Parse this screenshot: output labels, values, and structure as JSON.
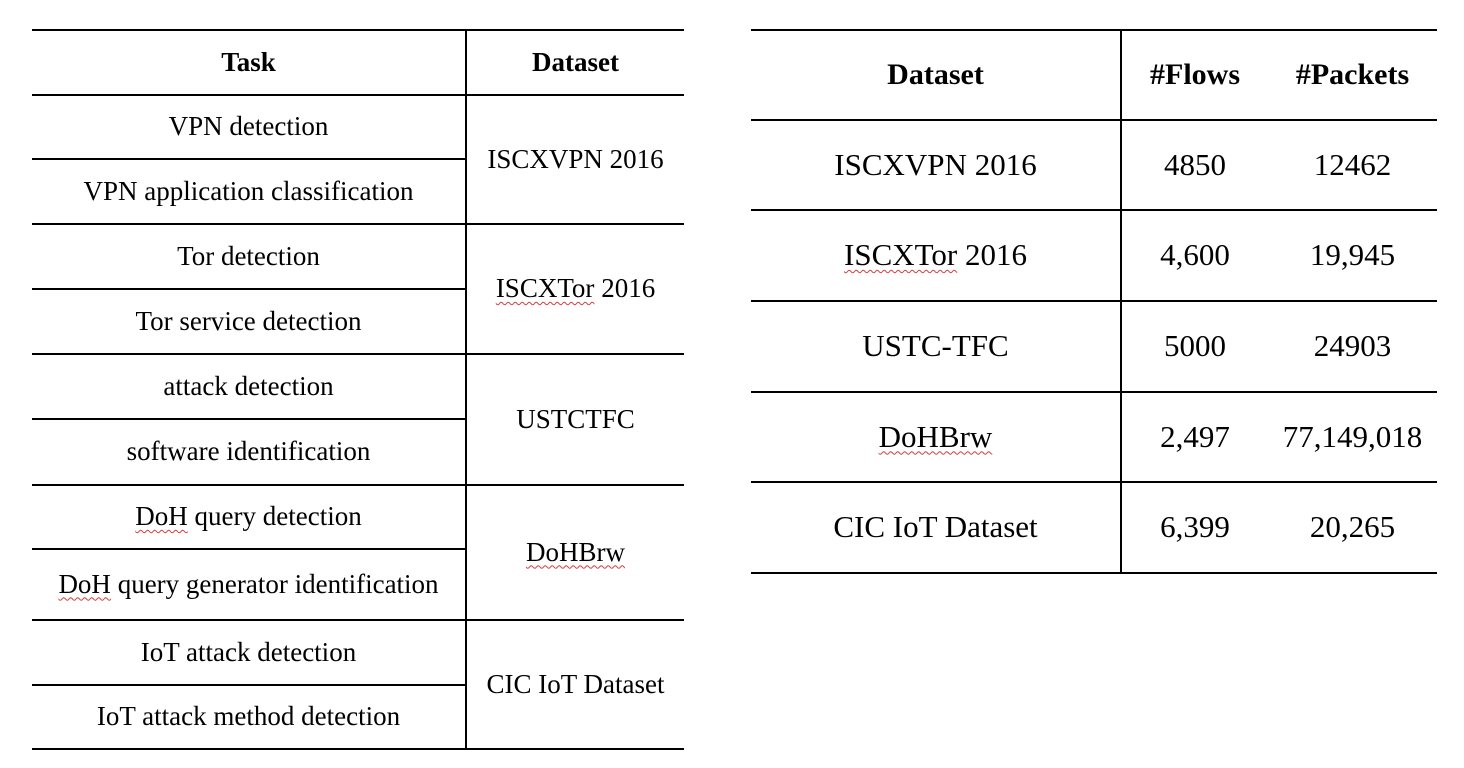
{
  "tasks_table": {
    "headers": {
      "task": "Task",
      "dataset": "Dataset"
    },
    "groups": [
      {
        "dataset": "ISCXVPN 2016",
        "tasks": [
          "VPN detection",
          "VPN application classification"
        ]
      },
      {
        "dataset": "ISCXTor 2016",
        "tasks": [
          "Tor detection",
          "Tor service detection"
        ]
      },
      {
        "dataset": "USTCTFC",
        "tasks": [
          "attack detection",
          "software identification"
        ]
      },
      {
        "dataset": "DoHBrw",
        "tasks": [
          "DoH query detection",
          "DoH query generator identification"
        ]
      },
      {
        "dataset": "CIC IoT Dataset",
        "tasks": [
          "IoT attack detection",
          "IoT attack method detection"
        ]
      }
    ]
  },
  "stats_table": {
    "headers": {
      "dataset": "Dataset",
      "flows": "#Flows",
      "packets": "#Packets"
    },
    "rows": [
      {
        "dataset": "ISCXVPN 2016",
        "flows": "4850",
        "packets": "12462"
      },
      {
        "dataset": "ISCXTor 2016",
        "flows": "4,600",
        "packets": "19,945"
      },
      {
        "dataset": "USTC-TFC",
        "flows": "5000",
        "packets": "24903"
      },
      {
        "dataset": "DoHBrw",
        "flows": "2,497",
        "packets": "77,149,018"
      },
      {
        "dataset": "CIC IoT Dataset",
        "flows": "6,399",
        "packets": "20,265"
      }
    ]
  },
  "spellcheck_flagged_words": [
    "ISCXTor",
    "DoHBrw",
    "DoH"
  ]
}
